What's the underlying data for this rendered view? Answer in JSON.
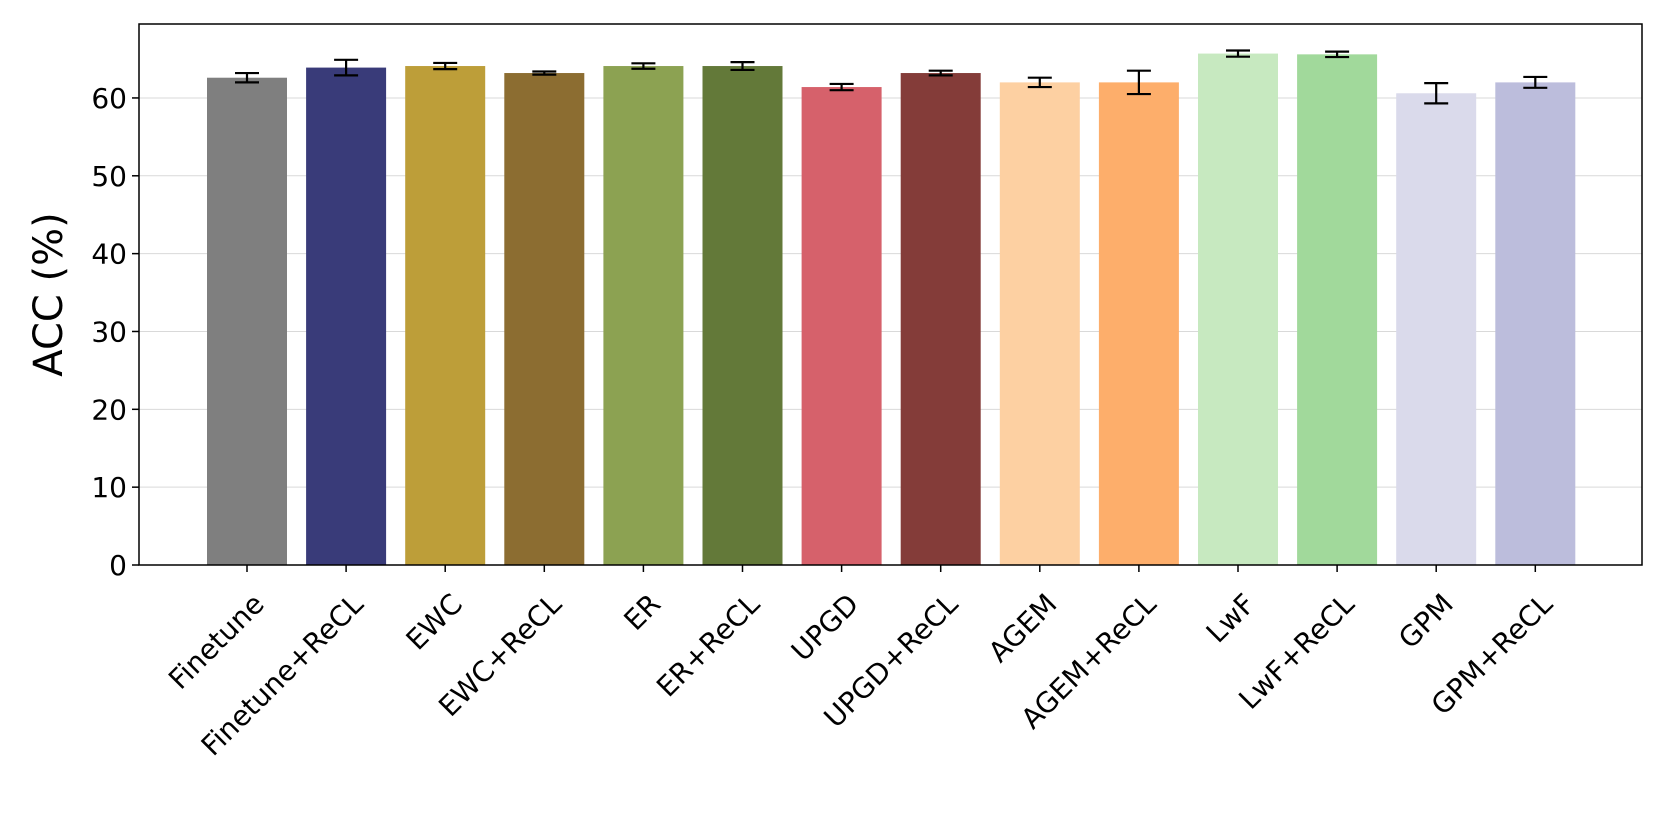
{
  "chart_data": {
    "type": "bar",
    "title": "",
    "xlabel": "",
    "ylabel": "ACC (%)",
    "ylim": [
      0,
      69.5
    ],
    "yticks": [
      0,
      10,
      20,
      30,
      40,
      50,
      60
    ],
    "grid": "horizontal",
    "categories": [
      "Finetune",
      "Finetune+ReCL",
      "EWC",
      "EWC+ReCL",
      "ER",
      "ER+ReCL",
      "UPGD",
      "UPGD+ReCL",
      "AGEM",
      "AGEM+ReCL",
      "LwF",
      "LwF+ReCL",
      "GPM",
      "GPM+ReCL"
    ],
    "values": [
      62.6,
      63.9,
      64.1,
      63.2,
      64.1,
      64.1,
      61.4,
      63.2,
      62.0,
      62.0,
      65.7,
      65.6,
      60.6,
      62.0
    ],
    "errors": [
      0.6,
      1.0,
      0.4,
      0.2,
      0.35,
      0.5,
      0.4,
      0.3,
      0.6,
      1.5,
      0.4,
      0.35,
      1.3,
      0.7
    ],
    "colors": [
      "#7f7f7f",
      "#393b79",
      "#bd9e39",
      "#8c6d31",
      "#8ca252",
      "#637939",
      "#d6616b",
      "#843c39",
      "#fdd0a2",
      "#fdae6b",
      "#c7e9c0",
      "#a1d99b",
      "#dadaeb",
      "#bcbddc"
    ]
  }
}
